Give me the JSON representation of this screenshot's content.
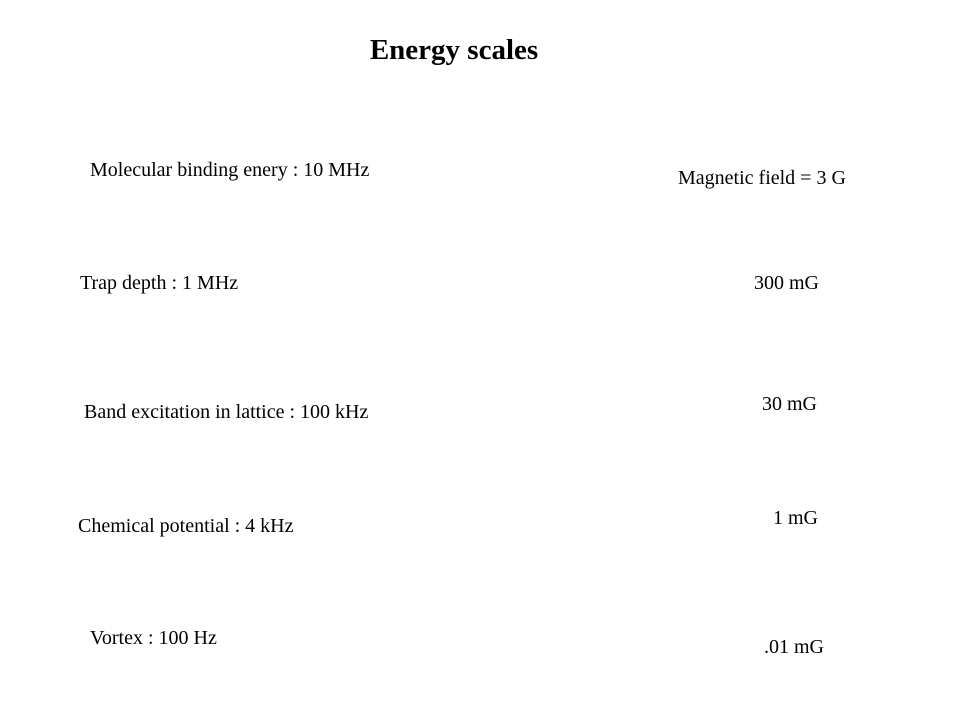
{
  "slide": {
    "title": "Energy scales",
    "energies": [
      "Molecular binding enery : 10 MHz",
      "Trap depth : 1 MHz",
      "Band excitation in lattice : 100 kHz",
      "Chemical potential : 4 kHz",
      "Vortex : 100 Hz"
    ],
    "fields": [
      "Magnetic field = 3 G",
      "300 mG",
      "30 mG",
      "1 mG",
      ".01 mG"
    ]
  }
}
